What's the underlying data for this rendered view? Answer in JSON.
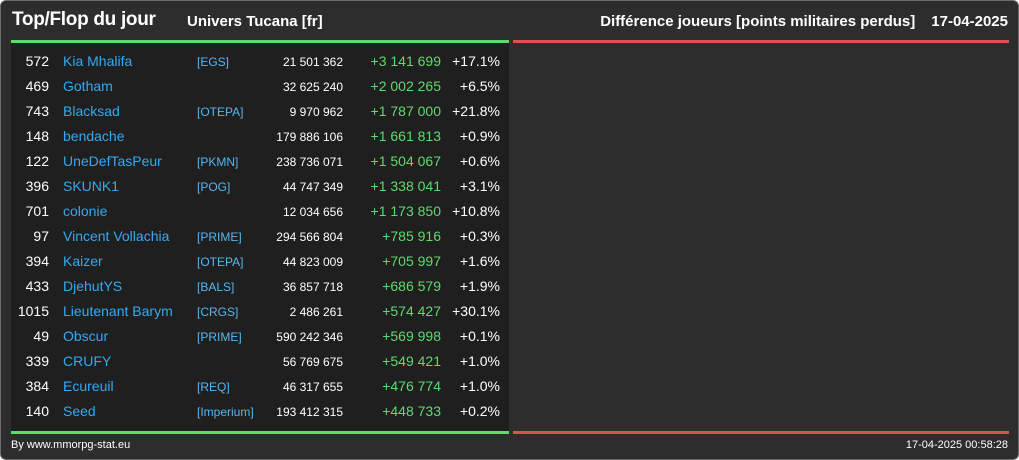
{
  "header": {
    "title": "Top/Flop du jour",
    "subtitle": "Univers Tucana [fr]",
    "metric": "Différence joueurs [points militaires perdus]",
    "date": "17-04-2025"
  },
  "colors": {
    "background": "#2d2d2d",
    "panel": "#1f1f1f",
    "name": "#33aaf2",
    "positive": "#5cdc6a",
    "negative_bar": "#d9534f"
  },
  "rows": [
    {
      "rank": "572",
      "name": "Kia Mhalifa",
      "alliance": "[EGS]",
      "points": "21 501 362",
      "diff": "+3 141 699",
      "pct": "+17.1%"
    },
    {
      "rank": "469",
      "name": "Gotham",
      "alliance": "",
      "points": "32 625 240",
      "diff": "+2 002 265",
      "pct": "+6.5%"
    },
    {
      "rank": "743",
      "name": "Blacksad",
      "alliance": "[OTEPA]",
      "points": "9 970 962",
      "diff": "+1 787 000",
      "pct": "+21.8%"
    },
    {
      "rank": "148",
      "name": "bendache",
      "alliance": "",
      "points": "179 886 106",
      "diff": "+1 661 813",
      "pct": "+0.9%"
    },
    {
      "rank": "122",
      "name": "UneDefTasPeur",
      "alliance": "[PKMN]",
      "points": "238 736 071",
      "diff": "+1 504 067",
      "pct": "+0.6%"
    },
    {
      "rank": "396",
      "name": "SKUNK1",
      "alliance": "[POG]",
      "points": "44 747 349",
      "diff": "+1 338 041",
      "pct": "+3.1%"
    },
    {
      "rank": "701",
      "name": "colonie",
      "alliance": "",
      "points": "12 034 656",
      "diff": "+1 173 850",
      "pct": "+10.8%"
    },
    {
      "rank": "97",
      "name": "Vincent Vollachia",
      "alliance": "[PRIME]",
      "points": "294 566 804",
      "diff": "+785 916",
      "pct": "+0.3%"
    },
    {
      "rank": "394",
      "name": "Kaizer",
      "alliance": "[OTEPA]",
      "points": "44 823 009",
      "diff": "+705 997",
      "pct": "+1.6%"
    },
    {
      "rank": "433",
      "name": "DjehutYS",
      "alliance": "[BALS]",
      "points": "36 857 718",
      "diff": "+686 579",
      "pct": "+1.9%"
    },
    {
      "rank": "1015",
      "name": "Lieutenant Barym",
      "alliance": "[CRGS]",
      "points": "2 486 261",
      "diff": "+574 427",
      "pct": "+30.1%"
    },
    {
      "rank": "49",
      "name": "Obscur",
      "alliance": "[PRIME]",
      "points": "590 242 346",
      "diff": "+569 998",
      "pct": "+0.1%"
    },
    {
      "rank": "339",
      "name": "CRUFY",
      "alliance": "",
      "points": "56 769 675",
      "diff": "+549 421",
      "pct": "+1.0%"
    },
    {
      "rank": "384",
      "name": "Ecureuil",
      "alliance": "[REQ]",
      "points": "46 317 655",
      "diff": "+476 774",
      "pct": "+1.0%"
    },
    {
      "rank": "140",
      "name": "Seed",
      "alliance": "[Imperium]",
      "points": "193 412 315",
      "diff": "+448 733",
      "pct": "+0.2%"
    }
  ],
  "footer": {
    "credit": "By www.mmorpg-stat.eu",
    "timestamp": "17-04-2025 00:58:28"
  }
}
